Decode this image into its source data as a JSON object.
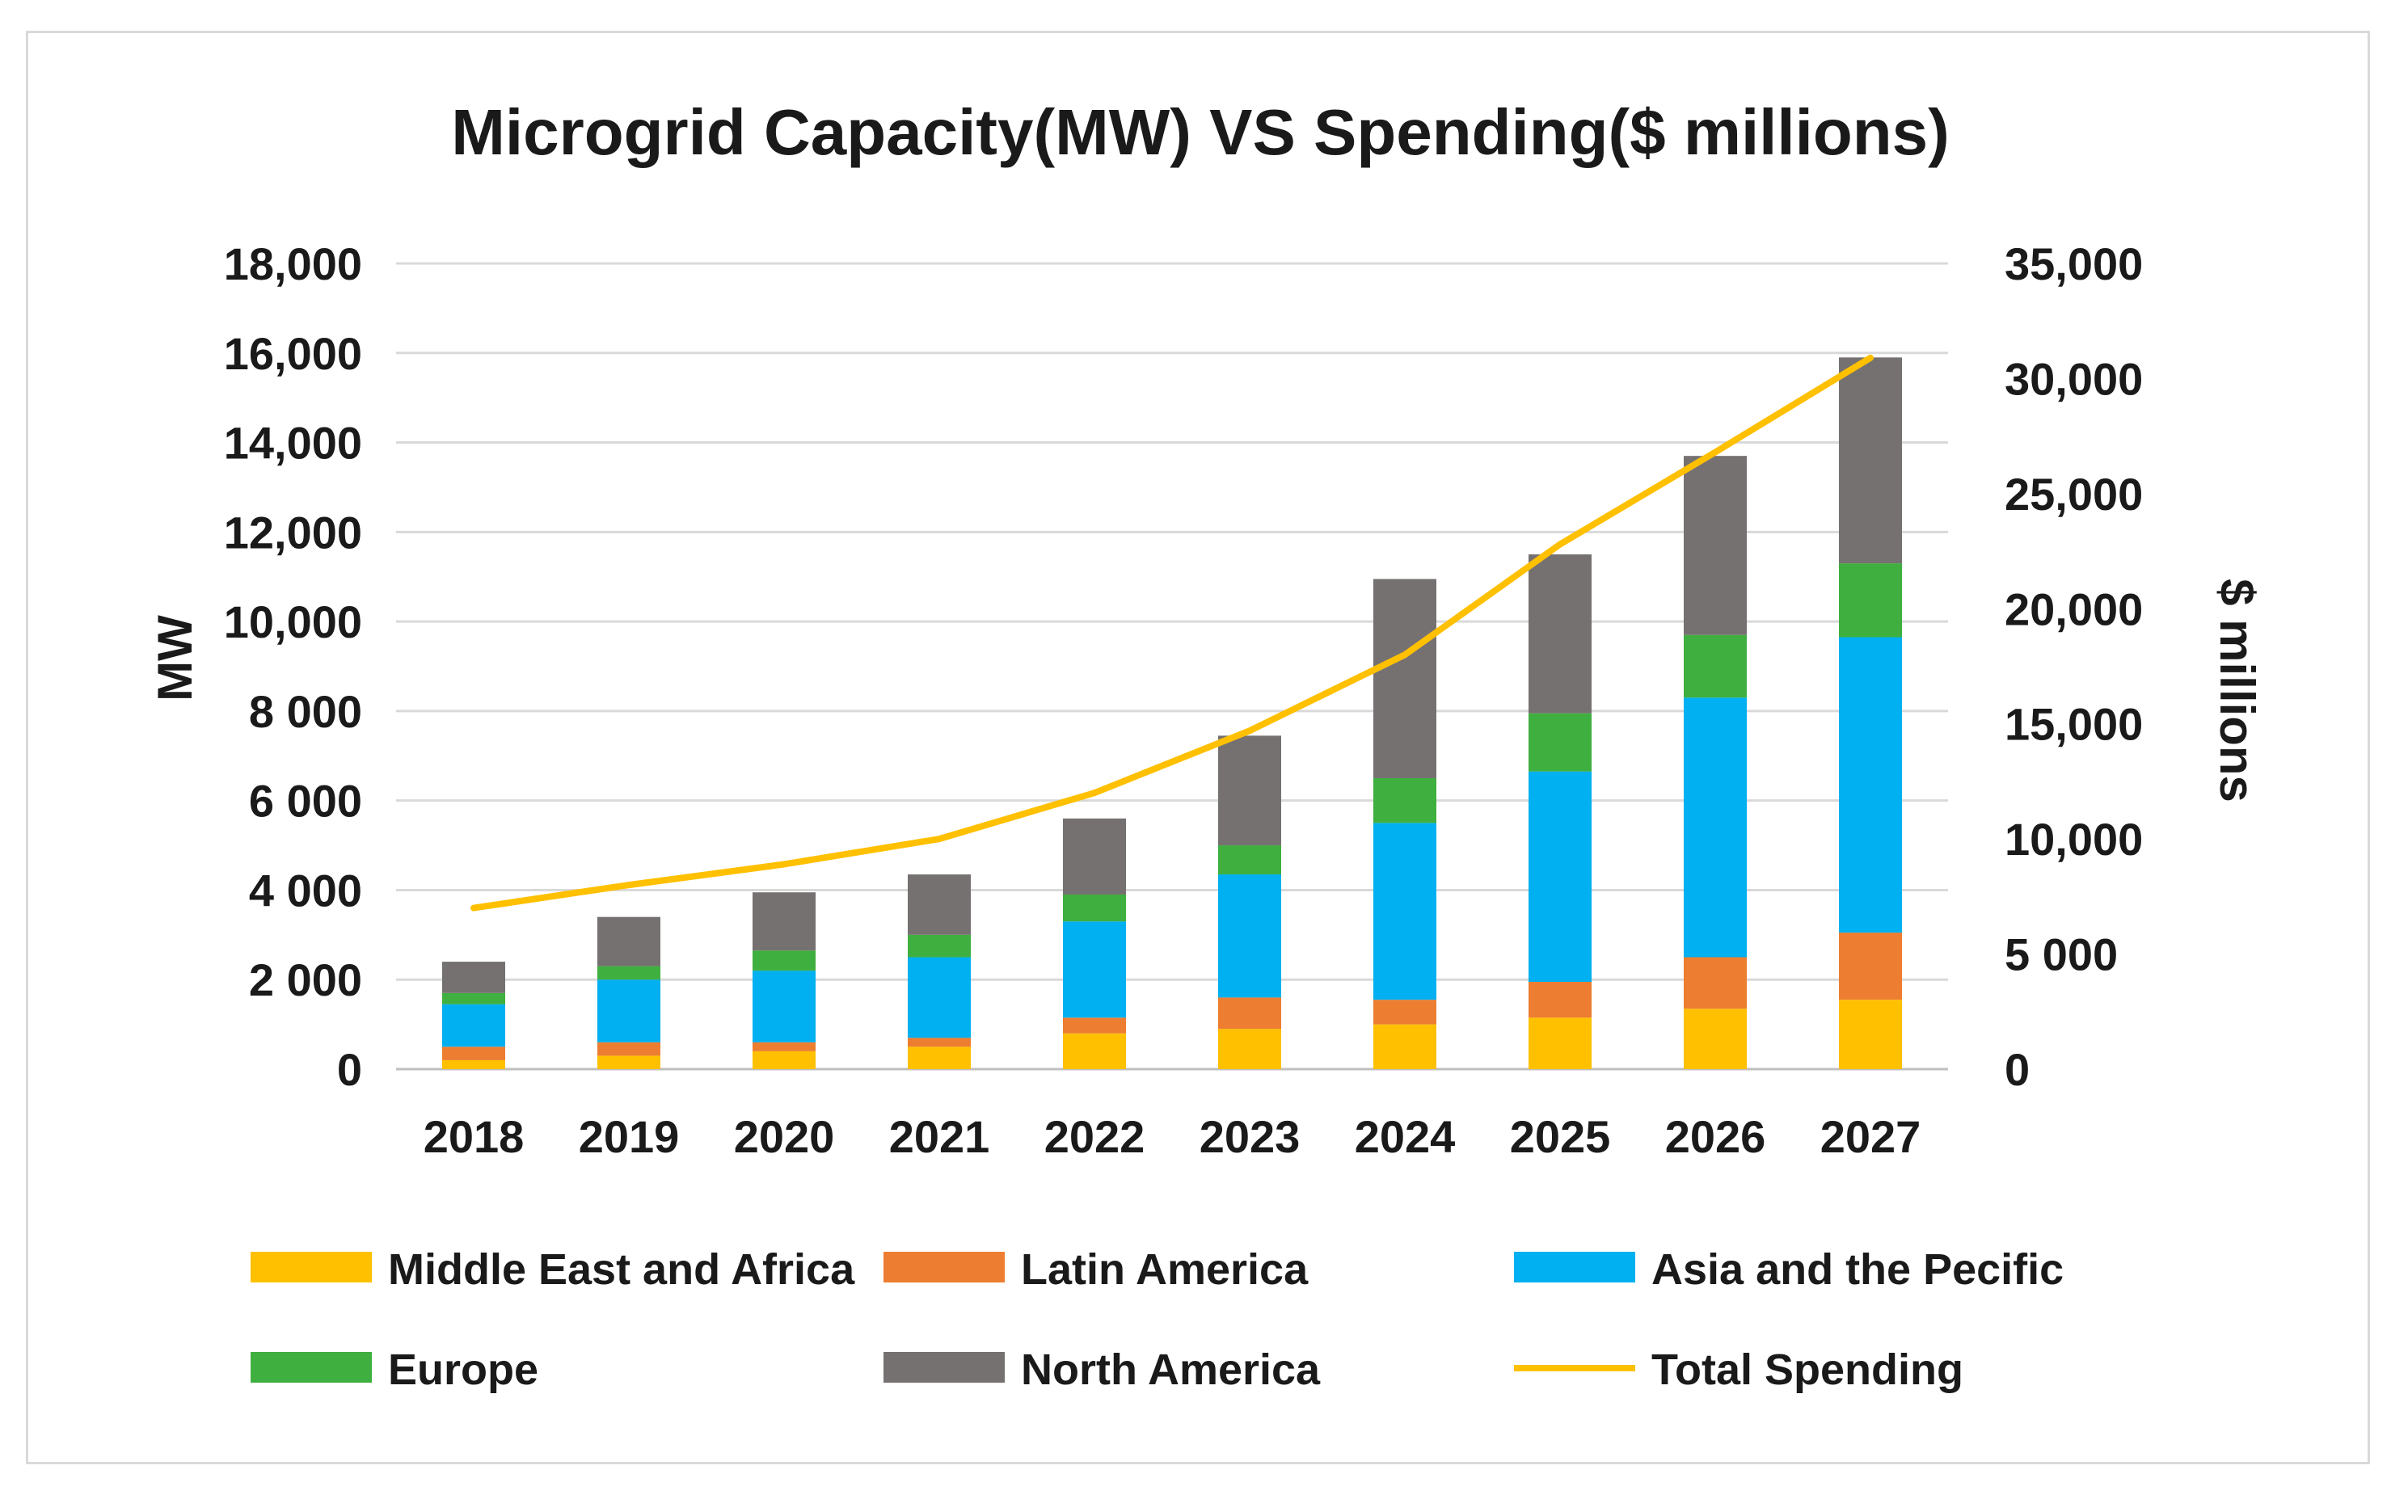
{
  "chart_data": {
    "type": "bar",
    "stacked": true,
    "title": "Microgrid Capacity(MW)  VS Spending($ millions)",
    "categories": [
      "2018",
      "2019",
      "2020",
      "2021",
      "2022",
      "2023",
      "2024",
      "2025",
      "2026",
      "2027"
    ],
    "series": [
      {
        "name": "Middle East and Africa",
        "color": "#FFC000",
        "axis": "left",
        "values": [
          200,
          300,
          400,
          500,
          800,
          900,
          1000,
          1150,
          1350,
          1550
        ]
      },
      {
        "name": "Latin America",
        "color": "#ED7D31",
        "axis": "left",
        "values": [
          300,
          300,
          200,
          200,
          350,
          700,
          550,
          800,
          1150,
          1500
        ]
      },
      {
        "name": "Asia and the Pecific",
        "color": "#00B0F0",
        "axis": "left",
        "values": [
          950,
          1400,
          1600,
          1800,
          2150,
          2750,
          3950,
          4700,
          5800,
          6600
        ]
      },
      {
        "name": "Europe",
        "color": "#3FAF3F",
        "axis": "left",
        "values": [
          250,
          300,
          450,
          500,
          600,
          650,
          1000,
          1300,
          1400,
          1650
        ]
      },
      {
        "name": "North America",
        "color": "#767171",
        "axis": "left",
        "values": [
          700,
          1100,
          1300,
          1350,
          1700,
          2450,
          4450,
          3550,
          4000,
          4600
        ]
      }
    ],
    "line_series": [
      {
        "name": "Total Spending",
        "color": "#FFC000",
        "axis": "right",
        "values": [
          7000,
          8000,
          8900,
          10000,
          12000,
          14700,
          18000,
          22800,
          26800,
          30900
        ]
      }
    ],
    "ylabel": "MW",
    "y2label": "$ millions",
    "ylim": [
      0,
      18000
    ],
    "y2lim": [
      0,
      35000
    ],
    "yticks": [
      "0",
      "2 000",
      "4 000",
      "6 000",
      "8 000",
      "10,000",
      "12,000",
      "14,000",
      "16,000",
      "18,000"
    ],
    "y2ticks": [
      "0",
      "5 000",
      "10,000",
      "15,000",
      "20,000",
      "25,000",
      "30,000",
      "35,000"
    ],
    "legend": "bottom",
    "grid": true
  }
}
